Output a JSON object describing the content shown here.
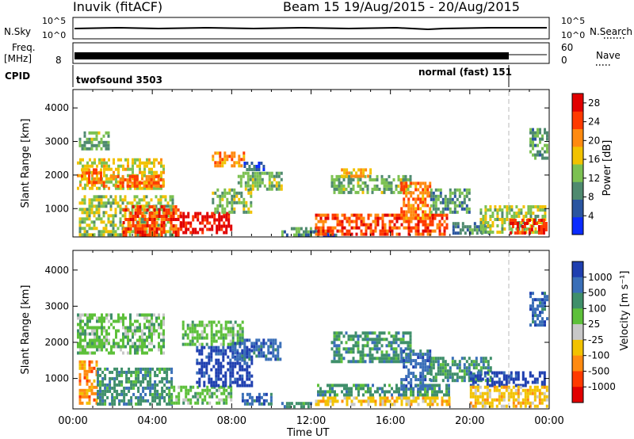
{
  "header": {
    "station": "Inuvik (fitACF)",
    "beam_info": "Beam 15  19/Aug/2015 - 20/Aug/2015"
  },
  "top_panels": {
    "nsky_label": "N.Sky",
    "nsky_ticks": [
      "10^5",
      "10^0"
    ],
    "nsearch_label": "N.Search",
    "nsearch_ticks": [
      "10^5",
      "10^0"
    ],
    "freq_label_1": "Freq.",
    "freq_label_2": "[MHz]",
    "freq_ticks": [
      "8"
    ],
    "nave_label": "Nave",
    "nave_ticks": [
      "60",
      "0"
    ],
    "cpid_label": "CPID",
    "cpid_modes": [
      "twofsound 3503",
      "normal (fast) 151"
    ],
    "cpid_switch_time": "22:00"
  },
  "chart_data": [
    {
      "type": "heatmap",
      "title": "",
      "xlabel": "Time UT",
      "ylabel": "Slant Range [km]",
      "xlim": [
        "00:00",
        "24:00"
      ],
      "ylim": [
        180,
        4500
      ],
      "x_ticks": [
        "00:00",
        "04:00",
        "08:00",
        "12:00",
        "16:00",
        "20:00",
        "00:00"
      ],
      "y_ticks": [
        1000,
        2000,
        3000,
        4000
      ],
      "colorbar": {
        "label": "Power [dB]",
        "ticks": [
          4,
          8,
          12,
          16,
          20,
          24,
          28
        ],
        "range": [
          0,
          30
        ],
        "colors": [
          "#0a2bff",
          "#2a55a0",
          "#4f8a6f",
          "#7cc152",
          "#f2c200",
          "#ff8a10",
          "#ff3a00",
          "#e10000"
        ]
      },
      "regions": [
        {
          "t0": 0.2,
          "t1": 4.6,
          "r0": 1600,
          "r1": 2500,
          "level": 16
        },
        {
          "t0": 1.5,
          "t1": 4.5,
          "r0": 1700,
          "r1": 2000,
          "level": 22
        },
        {
          "t0": 0.3,
          "t1": 1.8,
          "r0": 2800,
          "r1": 3300,
          "level": 12
        },
        {
          "t0": 0.4,
          "t1": 1.4,
          "r0": 1800,
          "r1": 2200,
          "level": 22
        },
        {
          "t0": 0.3,
          "t1": 5.0,
          "r0": 250,
          "r1": 1400,
          "level": 14
        },
        {
          "t0": 2.5,
          "t1": 5.4,
          "r0": 250,
          "r1": 1100,
          "level": 24
        },
        {
          "t0": 5.4,
          "t1": 8.0,
          "r0": 250,
          "r1": 900,
          "level": 28
        },
        {
          "t0": 7.0,
          "t1": 8.6,
          "r0": 2300,
          "r1": 2700,
          "level": 20
        },
        {
          "t0": 7.0,
          "t1": 9.0,
          "r0": 900,
          "r1": 1600,
          "level": 12
        },
        {
          "t0": 8.3,
          "t1": 10.5,
          "r0": 1600,
          "r1": 2100,
          "level": 12
        },
        {
          "t0": 8.6,
          "t1": 9.6,
          "r0": 2200,
          "r1": 2400,
          "level": 6
        },
        {
          "t0": 10.5,
          "t1": 13.0,
          "r0": 250,
          "r1": 450,
          "level": 10
        },
        {
          "t0": 12.0,
          "t1": 13.2,
          "r0": 200,
          "r1": 350,
          "level": 4
        },
        {
          "t0": 12.2,
          "t1": 18.8,
          "r0": 250,
          "r1": 850,
          "level": 24
        },
        {
          "t0": 13.0,
          "t1": 17.0,
          "r0": 1500,
          "r1": 2000,
          "level": 12
        },
        {
          "t0": 13.5,
          "t1": 15.0,
          "r0": 2000,
          "r1": 2200,
          "level": 18
        },
        {
          "t0": 16.5,
          "t1": 18.0,
          "r0": 700,
          "r1": 1800,
          "level": 22
        },
        {
          "t0": 18.0,
          "t1": 20.0,
          "r0": 900,
          "r1": 1600,
          "level": 10
        },
        {
          "t0": 19.0,
          "t1": 21.0,
          "r0": 250,
          "r1": 600,
          "level": 8
        },
        {
          "t0": 20.5,
          "t1": 23.8,
          "r0": 300,
          "r1": 1100,
          "level": 14
        },
        {
          "t0": 22.0,
          "t1": 23.9,
          "r0": 250,
          "r1": 700,
          "level": 26
        },
        {
          "t0": 23.0,
          "t1": 23.9,
          "r0": 2500,
          "r1": 3400,
          "level": 10
        }
      ]
    },
    {
      "type": "heatmap",
      "title": "",
      "xlabel": "Time UT",
      "ylabel": "Slant Range [km]",
      "xlim": [
        "00:00",
        "24:00"
      ],
      "ylim": [
        180,
        4500
      ],
      "x_ticks": [
        "00:00",
        "04:00",
        "08:00",
        "12:00",
        "16:00",
        "20:00",
        "00:00"
      ],
      "y_ticks": [
        1000,
        2000,
        3000,
        4000
      ],
      "colorbar": {
        "label": "Velocity [m s⁻¹]",
        "ticks": [
          "1000",
          "500",
          "100",
          "25",
          "-25",
          "-100",
          "-500",
          "-1000"
        ],
        "colors": [
          "#1f3fb0",
          "#3a6fb8",
          "#3f8f6a",
          "#5dc03a",
          "#c8c8c8",
          "#f2c200",
          "#ff8a10",
          "#ff3a00",
          "#e10000"
        ]
      },
      "regions": [
        {
          "t0": 0.2,
          "t1": 4.6,
          "r0": 1700,
          "r1": 2800,
          "level": "25"
        },
        {
          "t0": 5.5,
          "t1": 8.6,
          "r0": 1900,
          "r1": 2600,
          "level": "25"
        },
        {
          "t0": 0.3,
          "t1": 1.2,
          "r0": 300,
          "r1": 1500,
          "level": "-500"
        },
        {
          "t0": 1.2,
          "t1": 5.0,
          "r0": 250,
          "r1": 1300,
          "level": "100"
        },
        {
          "t0": 4.8,
          "t1": 8.0,
          "r0": 300,
          "r1": 800,
          "level": "25"
        },
        {
          "t0": 6.2,
          "t1": 9.0,
          "r0": 800,
          "r1": 1900,
          "level": "1000"
        },
        {
          "t0": 8.0,
          "t1": 10.5,
          "r0": 1500,
          "r1": 2100,
          "level": "500"
        },
        {
          "t0": 8.5,
          "t1": 10.0,
          "r0": 250,
          "r1": 600,
          "level": "500"
        },
        {
          "t0": 10.5,
          "t1": 12.0,
          "r0": 200,
          "r1": 350,
          "level": "100"
        },
        {
          "t0": 12.2,
          "t1": 19.0,
          "r0": 250,
          "r1": 500,
          "level": "-100"
        },
        {
          "t0": 12.3,
          "t1": 19.0,
          "r0": 500,
          "r1": 850,
          "level": "100"
        },
        {
          "t0": 13.0,
          "t1": 17.0,
          "r0": 1500,
          "r1": 2300,
          "level": "100"
        },
        {
          "t0": 16.5,
          "t1": 18.0,
          "r0": 700,
          "r1": 1800,
          "level": "500"
        },
        {
          "t0": 18.0,
          "t1": 21.0,
          "r0": 900,
          "r1": 1600,
          "level": "100"
        },
        {
          "t0": 20.0,
          "t1": 23.8,
          "r0": 800,
          "r1": 1200,
          "level": "1000"
        },
        {
          "t0": 20.0,
          "t1": 23.9,
          "r0": 250,
          "r1": 800,
          "level": "-100"
        },
        {
          "t0": 23.0,
          "t1": 23.9,
          "r0": 2500,
          "r1": 3400,
          "level": "500"
        }
      ]
    }
  ]
}
